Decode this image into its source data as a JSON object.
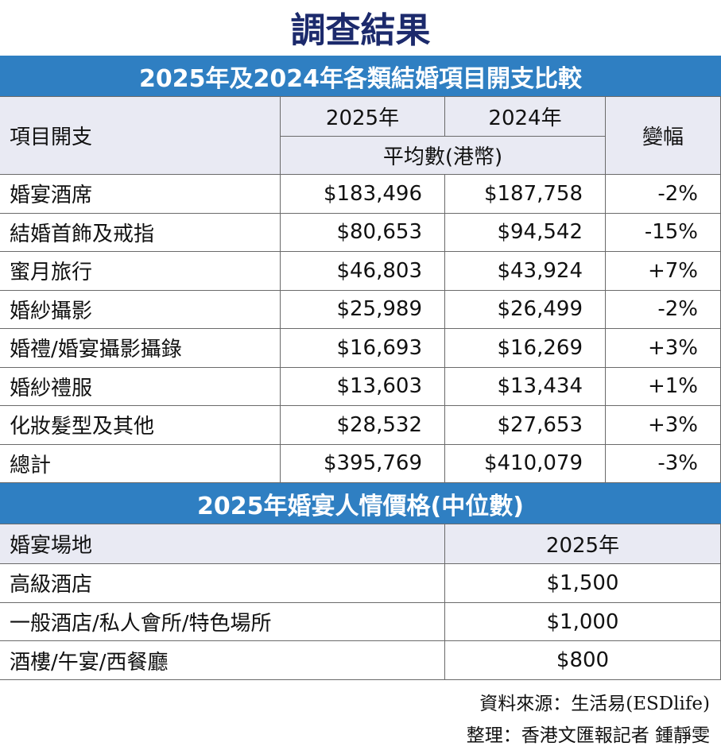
{
  "title": "調查結果",
  "table1": {
    "title": "2025年及2024年各類結婚項目開支比較",
    "header": {
      "item": "項目開支",
      "year1": "2025年",
      "year2": "2024年",
      "unit": "平均數(港幣)",
      "change": "變幅"
    },
    "rows": [
      [
        "婚宴酒席",
        "$183,496",
        "$187,758",
        "-2%"
      ],
      [
        "結婚首飾及戒指",
        "$80,653",
        "$94,542",
        "-15%"
      ],
      [
        "蜜月旅行",
        "$46,803",
        "$43,924",
        "+7%"
      ],
      [
        "婚紗攝影",
        "$25,989",
        "$26,499",
        "-2%"
      ],
      [
        "婚禮/婚宴攝影攝錄",
        "$16,693",
        "$16,269",
        "+3%"
      ],
      [
        "婚紗禮服",
        "$13,603",
        "$13,434",
        "+1%"
      ],
      [
        "化妝髮型及其他",
        "$28,532",
        "$27,653",
        "+3%"
      ],
      [
        "總計",
        "$395,769",
        "$410,079",
        "-3%"
      ]
    ]
  },
  "table2": {
    "title": "2025年婚宴人情價格(中位數)",
    "header": [
      "婚宴場地",
      "2025年"
    ],
    "rows": [
      [
        "高級酒店",
        "$1,500"
      ],
      [
        "一般酒店/私人會所/特色場所",
        "$1,000"
      ],
      [
        "酒樓/午宴/西餐廳",
        "$800"
      ]
    ]
  },
  "source": "資料來源：生活易(ESDlife)",
  "credit": "整理：香港文匯報記者 鍾靜雯"
}
